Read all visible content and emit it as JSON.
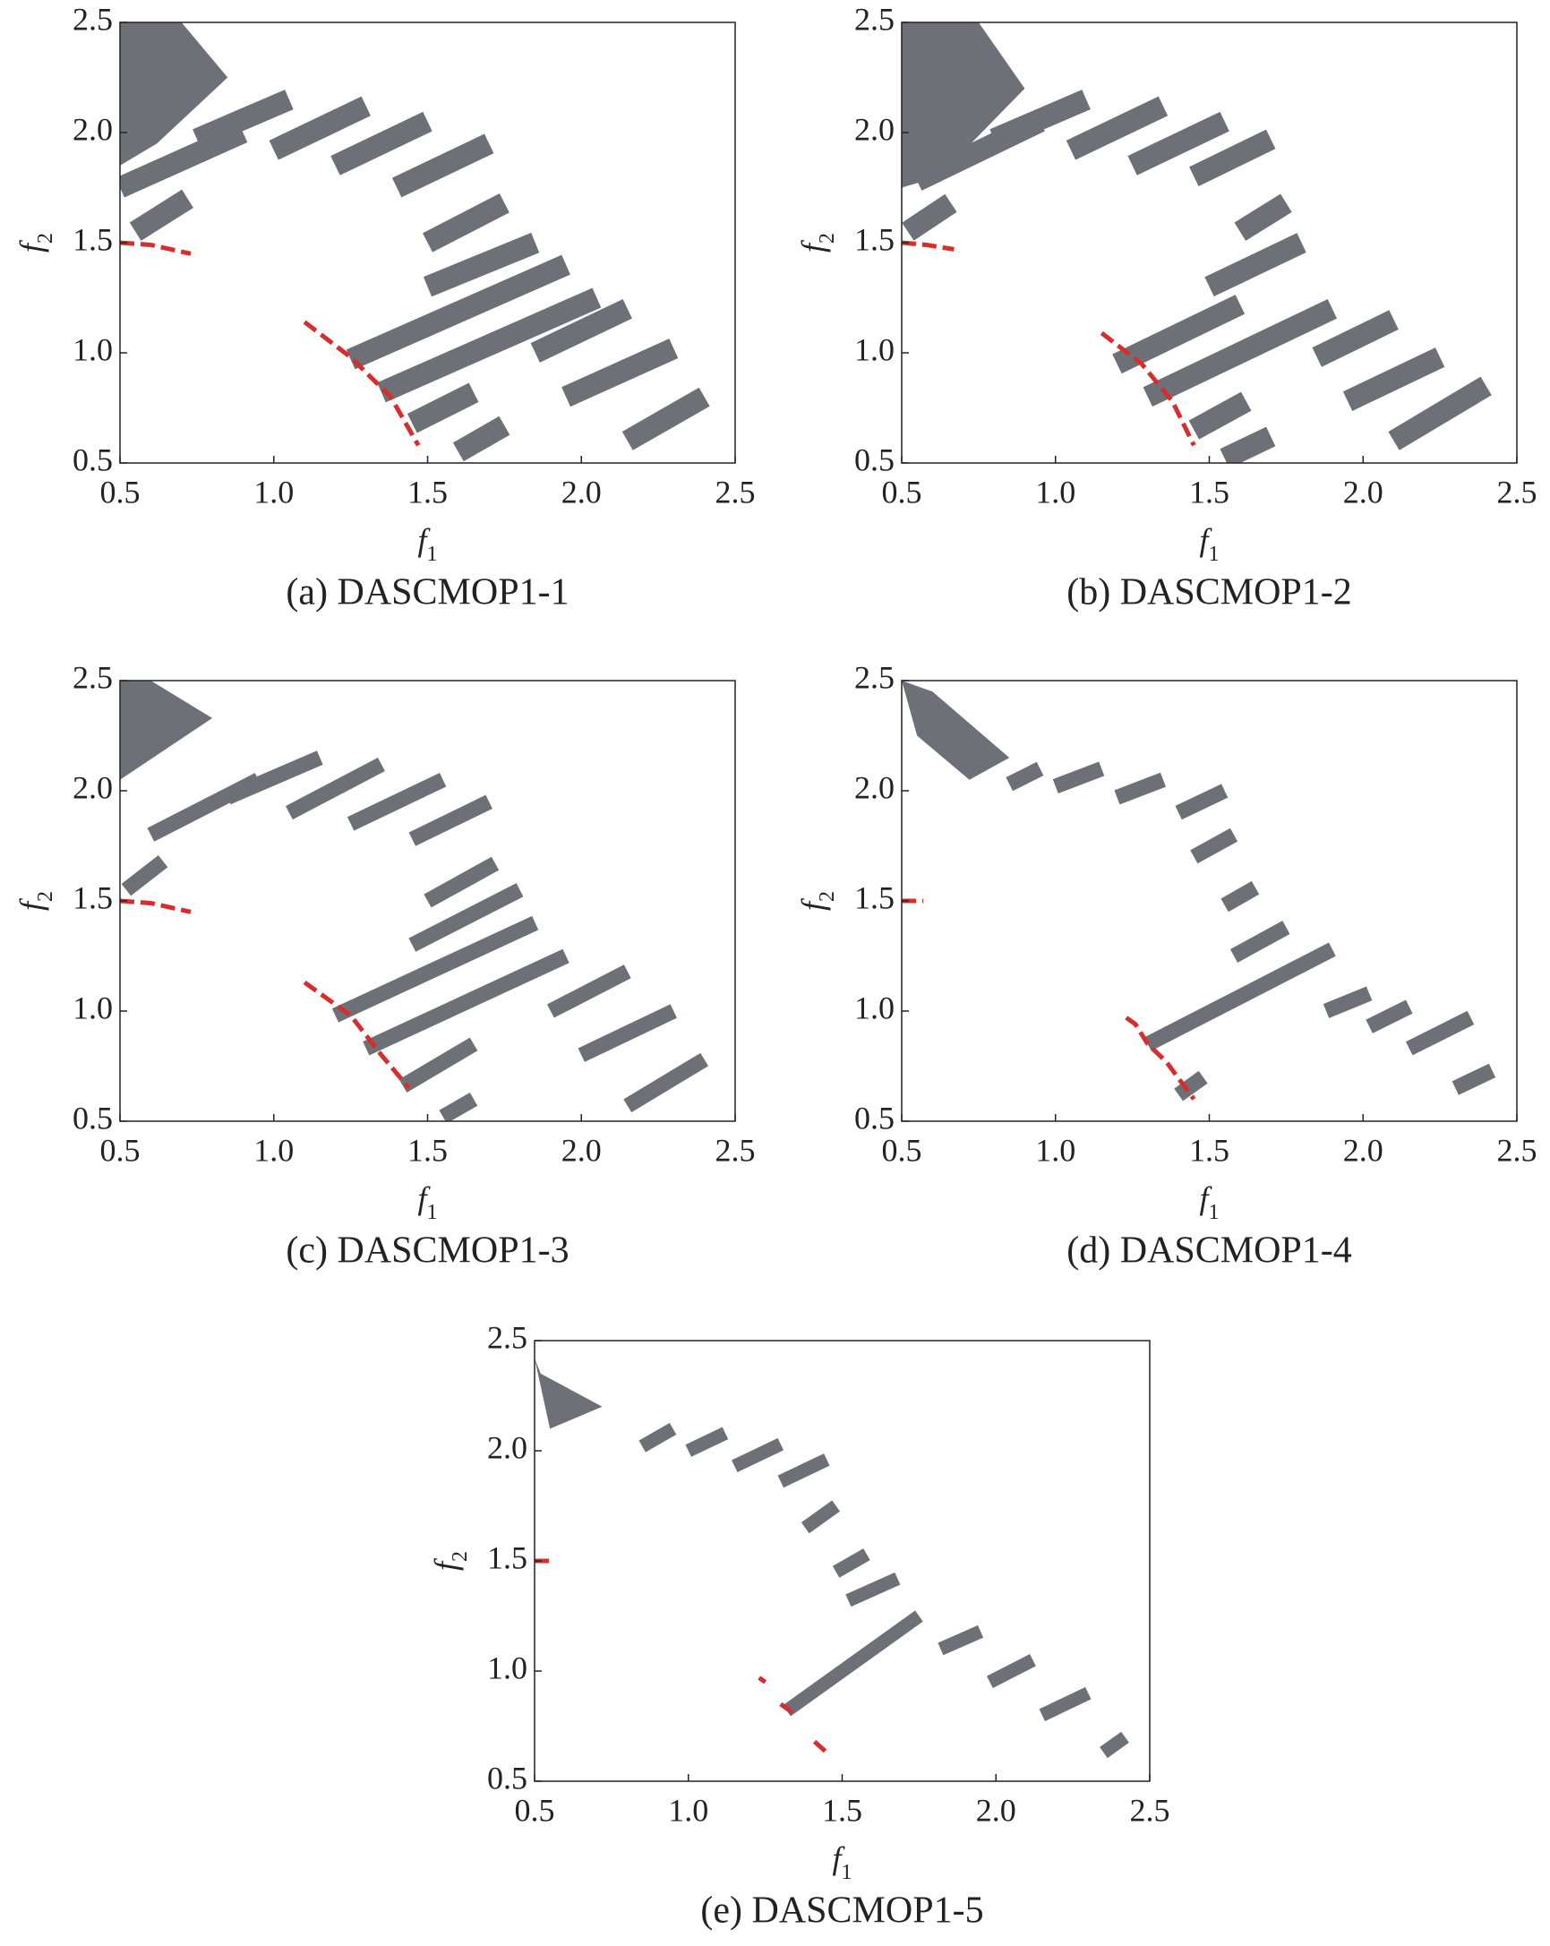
{
  "chart_data": [
    {
      "type": "region",
      "title": "(a) DASCMOP1-1",
      "xlabel": {
        "text": "f",
        "subscript": "1"
      },
      "ylabel": {
        "text": "f",
        "subscript": "2"
      },
      "xlim": [
        0.5,
        2.5
      ],
      "ylim": [
        0.5,
        2.5
      ],
      "xticks": [
        0.5,
        {
          "value": 1,
          "label": "1.0"
        },
        1.5,
        {
          "value": 2,
          "label": "2.0"
        },
        2.5
      ],
      "yticks": [
        0.5,
        {
          "value": 1,
          "label": "1.0"
        },
        1.5,
        {
          "value": 2,
          "label": "2.0"
        },
        2.5
      ],
      "region_color": "#6d7177",
      "front_color": "#d62d2d",
      "corner": {
        "x": [
          0.5,
          0.7,
          0.85,
          0.62,
          0.5
        ],
        "y": [
          2.5,
          2.5,
          2.25,
          1.95,
          1.85
        ]
      },
      "stripes": [
        {
          "x": [
            0.55,
            0.72
          ],
          "y": [
            1.55,
            1.7
          ]
        },
        {
          "x": [
            0.5,
            0.9
          ],
          "y": [
            1.75,
            2.0
          ]
        },
        {
          "x": [
            0.75,
            1.05
          ],
          "y": [
            1.97,
            2.15
          ]
        },
        {
          "x": [
            1.0,
            1.3
          ],
          "y": [
            1.92,
            2.12
          ]
        },
        {
          "x": [
            1.2,
            1.5
          ],
          "y": [
            1.85,
            2.05
          ]
        },
        {
          "x": [
            1.4,
            1.7
          ],
          "y": [
            1.75,
            1.95
          ]
        },
        {
          "x": [
            1.5,
            1.75
          ],
          "y": [
            1.5,
            1.68
          ]
        },
        {
          "x": [
            1.5,
            1.85
          ],
          "y": [
            1.3,
            1.5
          ]
        },
        {
          "x": [
            1.25,
            1.95
          ],
          "y": [
            0.97,
            1.4
          ]
        },
        {
          "x": [
            1.35,
            2.05
          ],
          "y": [
            0.82,
            1.25
          ]
        },
        {
          "x": [
            1.45,
            1.65
          ],
          "y": [
            0.68,
            0.82
          ]
        },
        {
          "x": [
            1.85,
            2.15
          ],
          "y": [
            1.0,
            1.2
          ]
        },
        {
          "x": [
            1.6,
            1.75
          ],
          "y": [
            0.55,
            0.67
          ]
        },
        {
          "x": [
            1.95,
            2.3
          ],
          "y": [
            0.8,
            1.02
          ]
        },
        {
          "x": [
            2.15,
            2.4
          ],
          "y": [
            0.6,
            0.8
          ]
        }
      ],
      "fronts": [
        {
          "x": [
            0.5,
            0.6,
            0.73
          ],
          "y": [
            1.5,
            1.49,
            1.45
          ]
        },
        {
          "x": [
            1.1,
            1.25,
            1.38,
            1.47
          ],
          "y": [
            1.14,
            0.98,
            0.8,
            0.58
          ]
        }
      ]
    },
    {
      "type": "region",
      "title": "(b) DASCMOP1-2",
      "xlabel": {
        "text": "f",
        "subscript": "1"
      },
      "ylabel": {
        "text": "f",
        "subscript": "2"
      },
      "xlim": [
        0.5,
        2.5
      ],
      "ylim": [
        0.5,
        2.5
      ],
      "xticks": [
        0.5,
        {
          "value": 1,
          "label": "1.0"
        },
        1.5,
        {
          "value": 2,
          "label": "2.0"
        },
        2.5
      ],
      "yticks": [
        0.5,
        {
          "value": 1,
          "label": "1.0"
        },
        1.5,
        {
          "value": 2,
          "label": "2.0"
        },
        2.5
      ],
      "region_color": "#6d7177",
      "front_color": "#d62d2d",
      "corner": {
        "x": [
          0.5,
          0.75,
          0.9,
          0.62,
          0.5
        ],
        "y": [
          2.5,
          2.5,
          2.2,
          1.8,
          1.75
        ]
      },
      "stripes": [
        {
          "x": [
            0.52,
            0.66
          ],
          "y": [
            1.55,
            1.68
          ]
        },
        {
          "x": [
            0.55,
            0.95
          ],
          "y": [
            1.78,
            2.05
          ]
        },
        {
          "x": [
            0.8,
            1.1
          ],
          "y": [
            1.97,
            2.15
          ]
        },
        {
          "x": [
            1.05,
            1.35
          ],
          "y": [
            1.92,
            2.12
          ]
        },
        {
          "x": [
            1.25,
            1.55
          ],
          "y": [
            1.85,
            2.05
          ]
        },
        {
          "x": [
            1.45,
            1.7
          ],
          "y": [
            1.8,
            1.97
          ]
        },
        {
          "x": [
            1.6,
            1.75
          ],
          "y": [
            1.55,
            1.68
          ]
        },
        {
          "x": [
            1.5,
            1.8
          ],
          "y": [
            1.3,
            1.5
          ]
        },
        {
          "x": [
            1.2,
            1.6
          ],
          "y": [
            0.95,
            1.22
          ]
        },
        {
          "x": [
            1.3,
            1.9
          ],
          "y": [
            0.8,
            1.2
          ]
        },
        {
          "x": [
            1.45,
            1.62
          ],
          "y": [
            0.65,
            0.78
          ]
        },
        {
          "x": [
            1.85,
            2.1
          ],
          "y": [
            0.98,
            1.15
          ]
        },
        {
          "x": [
            1.55,
            1.7
          ],
          "y": [
            0.52,
            0.62
          ]
        },
        {
          "x": [
            1.95,
            2.25
          ],
          "y": [
            0.78,
            0.98
          ]
        },
        {
          "x": [
            2.1,
            2.4
          ],
          "y": [
            0.6,
            0.85
          ]
        }
      ],
      "fronts": [
        {
          "x": [
            0.5,
            0.58,
            0.67
          ],
          "y": [
            1.5,
            1.49,
            1.47
          ]
        },
        {
          "x": [
            1.15,
            1.28,
            1.38,
            1.45
          ],
          "y": [
            1.09,
            0.95,
            0.78,
            0.58
          ]
        }
      ]
    },
    {
      "type": "region",
      "title": "(c) DASCMOP1-3",
      "xlabel": {
        "text": "f",
        "subscript": "1"
      },
      "ylabel": {
        "text": "f",
        "subscript": "2"
      },
      "xlim": [
        0.5,
        2.5
      ],
      "ylim": [
        0.5,
        2.5
      ],
      "xticks": [
        0.5,
        {
          "value": 1,
          "label": "1.0"
        },
        1.5,
        {
          "value": 2,
          "label": "2.0"
        },
        2.5
      ],
      "yticks": [
        0.5,
        {
          "value": 1,
          "label": "1.0"
        },
        1.5,
        {
          "value": 2,
          "label": "2.0"
        },
        2.5
      ],
      "region_color": "#6d7177",
      "front_color": "#d62d2d",
      "corner": {
        "x": [
          0.5,
          0.6,
          0.8,
          0.5
        ],
        "y": [
          2.5,
          2.5,
          2.33,
          2.05
        ]
      },
      "stripes": [
        {
          "x": [
            0.52,
            0.64
          ],
          "y": [
            1.55,
            1.68
          ]
        },
        {
          "x": [
            0.6,
            0.95
          ],
          "y": [
            1.8,
            2.05
          ]
        },
        {
          "x": [
            0.85,
            1.15
          ],
          "y": [
            1.97,
            2.15
          ]
        },
        {
          "x": [
            1.05,
            1.35
          ],
          "y": [
            1.9,
            2.12
          ]
        },
        {
          "x": [
            1.25,
            1.55
          ],
          "y": [
            1.85,
            2.05
          ]
        },
        {
          "x": [
            1.45,
            1.7
          ],
          "y": [
            1.78,
            1.95
          ]
        },
        {
          "x": [
            1.5,
            1.72
          ],
          "y": [
            1.5,
            1.67
          ]
        },
        {
          "x": [
            1.45,
            1.8
          ],
          "y": [
            1.3,
            1.55
          ]
        },
        {
          "x": [
            1.2,
            1.85
          ],
          "y": [
            0.98,
            1.4
          ]
        },
        {
          "x": [
            1.3,
            1.95
          ],
          "y": [
            0.83,
            1.25
          ]
        },
        {
          "x": [
            1.42,
            1.65
          ],
          "y": [
            0.66,
            0.85
          ]
        },
        {
          "x": [
            1.9,
            2.15
          ],
          "y": [
            1.0,
            1.18
          ]
        },
        {
          "x": [
            1.55,
            1.65
          ],
          "y": [
            0.52,
            0.6
          ]
        },
        {
          "x": [
            2.0,
            2.3
          ],
          "y": [
            0.8,
            1.0
          ]
        },
        {
          "x": [
            2.15,
            2.4
          ],
          "y": [
            0.57,
            0.78
          ]
        }
      ],
      "fronts": [
        {
          "x": [
            0.5,
            0.6,
            0.73
          ],
          "y": [
            1.5,
            1.49,
            1.45
          ]
        },
        {
          "x": [
            1.1,
            1.25,
            1.35,
            1.44
          ],
          "y": [
            1.13,
            0.98,
            0.8,
            0.65
          ]
        }
      ]
    },
    {
      "type": "region",
      "title": "(d) DASCMOP1-4",
      "xlabel": {
        "text": "f",
        "subscript": "1"
      },
      "ylabel": {
        "text": "f",
        "subscript": "2"
      },
      "xlim": [
        0.5,
        2.5
      ],
      "ylim": [
        0.5,
        2.5
      ],
      "xticks": [
        0.5,
        {
          "value": 1,
          "label": "1.0"
        },
        1.5,
        {
          "value": 2,
          "label": "2.0"
        },
        2.5
      ],
      "yticks": [
        0.5,
        {
          "value": 1,
          "label": "1.0"
        },
        1.5,
        {
          "value": 2,
          "label": "2.0"
        },
        2.5
      ],
      "region_color": "#6d7177",
      "front_color": "#d62d2d",
      "corner": {
        "x": [
          0.5,
          0.6,
          0.85,
          0.72,
          0.55
        ],
        "y": [
          2.5,
          2.45,
          2.15,
          2.05,
          2.25
        ]
      },
      "stripes": [
        {
          "x": [
            0.85,
            0.95
          ],
          "y": [
            2.03,
            2.1
          ]
        },
        {
          "x": [
            1.0,
            1.15
          ],
          "y": [
            2.02,
            2.1
          ]
        },
        {
          "x": [
            1.2,
            1.35
          ],
          "y": [
            1.97,
            2.05
          ]
        },
        {
          "x": [
            1.4,
            1.55
          ],
          "y": [
            1.9,
            2.0
          ]
        },
        {
          "x": [
            1.45,
            1.58
          ],
          "y": [
            1.7,
            1.8
          ]
        },
        {
          "x": [
            1.55,
            1.65
          ],
          "y": [
            1.48,
            1.56
          ]
        },
        {
          "x": [
            1.58,
            1.75
          ],
          "y": [
            1.25,
            1.38
          ]
        },
        {
          "x": [
            1.3,
            1.9
          ],
          "y": [
            0.85,
            1.28
          ]
        },
        {
          "x": [
            1.88,
            2.02
          ],
          "y": [
            1.0,
            1.08
          ]
        },
        {
          "x": [
            2.02,
            2.15
          ],
          "y": [
            0.93,
            1.02
          ]
        },
        {
          "x": [
            2.15,
            2.35
          ],
          "y": [
            0.83,
            0.97
          ]
        },
        {
          "x": [
            2.3,
            2.42
          ],
          "y": [
            0.65,
            0.73
          ]
        },
        {
          "x": [
            1.4,
            1.48
          ],
          "y": [
            0.62,
            0.7
          ]
        }
      ],
      "fronts": [
        {
          "x": [
            0.5,
            0.57
          ],
          "y": [
            1.5,
            1.5
          ]
        },
        {
          "x": [
            1.23,
            1.26,
            1.3,
            1.36,
            1.45
          ],
          "y": [
            0.97,
            0.94,
            0.85,
            0.77,
            0.6
          ]
        }
      ]
    },
    {
      "type": "region",
      "title": "(e) DASCMOP1-5",
      "xlabel": {
        "text": "f",
        "subscript": "1"
      },
      "ylabel": {
        "text": "f",
        "subscript": "2"
      },
      "xlim": [
        0.5,
        2.5
      ],
      "ylim": [
        0.5,
        2.5
      ],
      "xticks": [
        0.5,
        {
          "value": 1,
          "label": "1.0"
        },
        1.5,
        {
          "value": 2,
          "label": "2.0"
        },
        2.5
      ],
      "yticks": [
        0.5,
        {
          "value": 1,
          "label": "1.0"
        },
        1.5,
        {
          "value": 2,
          "label": "2.0"
        },
        2.5
      ],
      "region_color": "#6d7177",
      "front_color": "#d62d2d",
      "corner": {
        "x": [
          0.5,
          0.52,
          0.72,
          0.55
        ],
        "y": [
          2.42,
          2.35,
          2.2,
          2.1
        ]
      },
      "stripes": [
        {
          "x": [
            0.85,
            0.95
          ],
          "y": [
            2.02,
            2.1
          ]
        },
        {
          "x": [
            1.0,
            1.12
          ],
          "y": [
            2.0,
            2.08
          ]
        },
        {
          "x": [
            1.15,
            1.3
          ],
          "y": [
            1.93,
            2.03
          ]
        },
        {
          "x": [
            1.3,
            1.45
          ],
          "y": [
            1.86,
            1.96
          ]
        },
        {
          "x": [
            1.38,
            1.48
          ],
          "y": [
            1.65,
            1.75
          ]
        },
        {
          "x": [
            1.48,
            1.58
          ],
          "y": [
            1.45,
            1.53
          ]
        },
        {
          "x": [
            1.52,
            1.68
          ],
          "y": [
            1.32,
            1.42
          ]
        },
        {
          "x": [
            1.32,
            1.75
          ],
          "y": [
            0.82,
            1.25
          ]
        },
        {
          "x": [
            1.82,
            1.95
          ],
          "y": [
            1.1,
            1.18
          ]
        },
        {
          "x": [
            1.98,
            2.12
          ],
          "y": [
            0.95,
            1.05
          ]
        },
        {
          "x": [
            2.15,
            2.3
          ],
          "y": [
            0.8,
            0.9
          ]
        },
        {
          "x": [
            2.35,
            2.42
          ],
          "y": [
            0.63,
            0.7
          ]
        }
      ],
      "fronts": [
        {
          "x": [
            0.5,
            0.55
          ],
          "y": [
            1.5,
            1.5
          ]
        },
        {
          "x": [
            1.23,
            1.25
          ],
          "y": [
            0.97,
            0.95
          ]
        },
        {
          "x": [
            1.3,
            1.35
          ],
          "y": [
            0.85,
            0.8
          ]
        },
        {
          "x": [
            1.41,
            1.45
          ],
          "y": [
            0.68,
            0.63
          ]
        }
      ]
    }
  ]
}
